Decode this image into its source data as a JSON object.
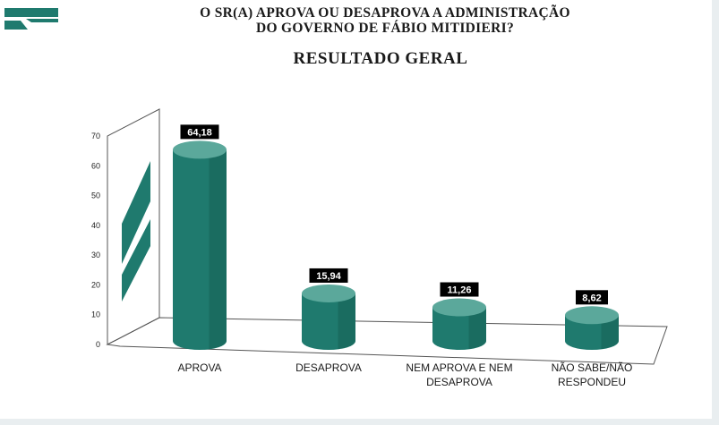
{
  "header": {
    "question_line1": "O SR(A) APROVA OU DESAPROVA A ADMINISTRAÇÃO",
    "question_line2": "DO GOVERNO DE FÁBIO MITIDIERI?",
    "subtitle": "RESULTADO GERAL",
    "logo_icon": "flag-logo-icon"
  },
  "colors": {
    "bar_body": "#1f7a6e",
    "bar_top": "#5ba89b",
    "bar_shadow": "#145a50",
    "label_bg": "#000000",
    "grid_line": "#555555"
  },
  "chart_data": {
    "type": "bar",
    "style": "3d-cylinder",
    "categories": [
      "APROVA",
      "DESAPROVA",
      "NEM APROVA E NEM DESAPROVA",
      "NÃO SABE/NÃO RESPONDEU"
    ],
    "category_lines": [
      [
        "APROVA"
      ],
      [
        "DESAPROVA"
      ],
      [
        "NEM APROVA E NEM",
        "DESAPROVA"
      ],
      [
        "NÃO SABE/NÃO",
        "RESPONDEU"
      ]
    ],
    "values": [
      64.18,
      15.94,
      11.26,
      8.62
    ],
    "value_labels": [
      "64,18",
      "15,94",
      "11,26",
      "8,62"
    ],
    "yticks": [
      0,
      10,
      20,
      30,
      40,
      50,
      60,
      70
    ],
    "ylim": [
      0,
      70
    ],
    "grid": false,
    "legend": "none"
  }
}
